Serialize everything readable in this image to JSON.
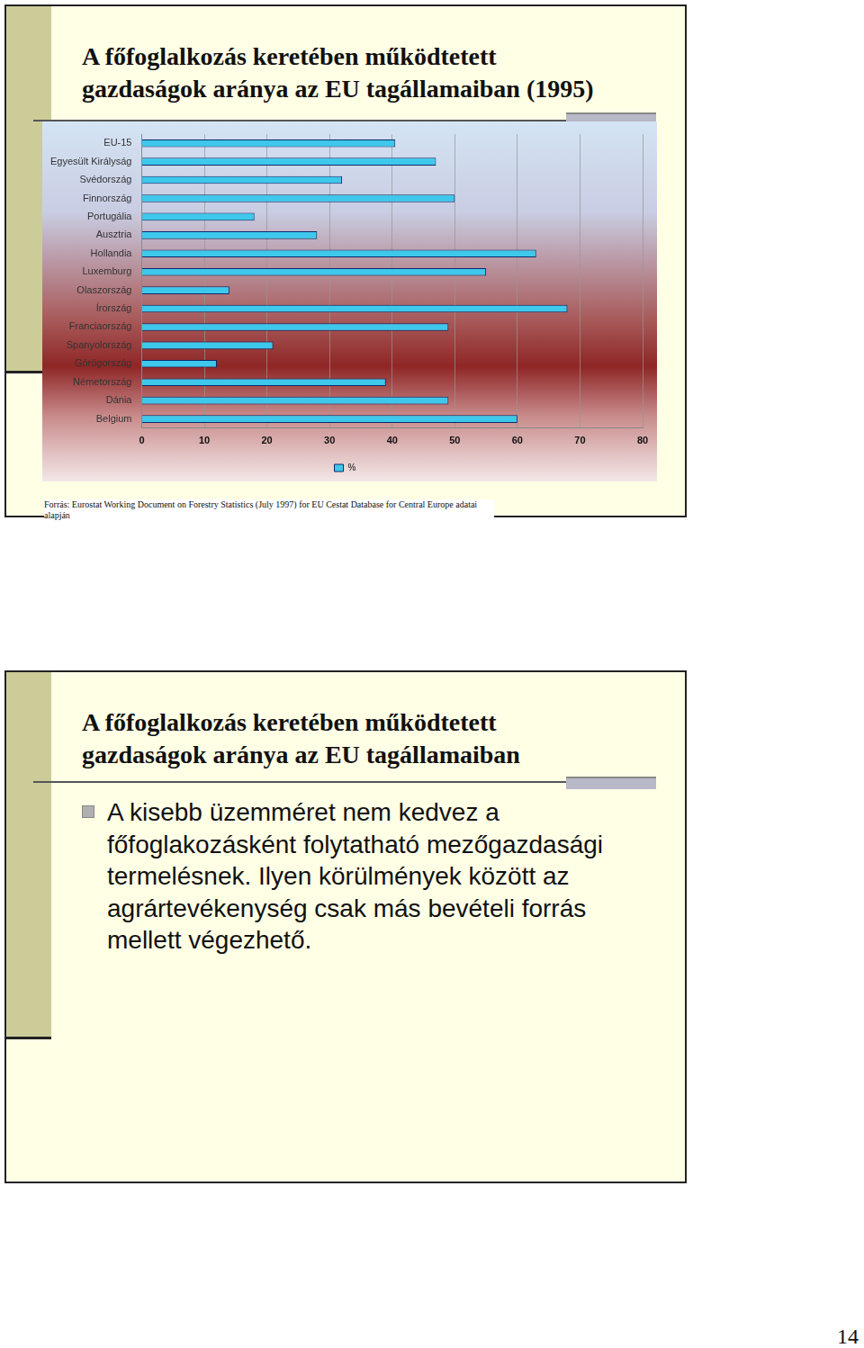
{
  "slides": [
    {
      "title": [
        "A főfoglalkozás keretében működtetett",
        "gazdaságok aránya az EU tagállamaiban (1995)"
      ],
      "source": "Forrás: Eurostat Working Document on Forestry Statistics (July 1997) for EU Cestat Database for Central Europe adatai alapján"
    },
    {
      "title": [
        "A főfoglalkozás keretében működtetett",
        "gazdaságok aránya az EU tagállamaiban"
      ],
      "bullets": [
        "A kisebb üzemméret nem kedvez a főfoglakozásként folytatható mezőgazdasági termelésnek. Ilyen körülmények között az agrártevékenység csak más bevételi forrás mellett végezhető."
      ]
    }
  ],
  "chart_data": {
    "type": "bar",
    "orientation": "horizontal",
    "categories": [
      "EU-15",
      "Egyesült Királyság",
      "Svédország",
      "Finnország",
      "Portugália",
      "Ausztria",
      "Hollandia",
      "Luxemburg",
      "Olaszország",
      "Írország",
      "Franciaország",
      "Spanyolország",
      "Görögország",
      "Németország",
      "Dánia",
      "Belgium"
    ],
    "series": [
      {
        "name": "%",
        "color": "#3ec8ec",
        "values": [
          40.5,
          47,
          32,
          50,
          18,
          28,
          63,
          55,
          14,
          68,
          49,
          21,
          12,
          39,
          49,
          60
        ]
      }
    ],
    "xlim": [
      0,
      80
    ],
    "xticks": [
      0,
      10,
      20,
      30,
      40,
      50,
      60,
      70,
      80
    ],
    "grid": true,
    "legend": "bottom"
  },
  "page_number": 14
}
